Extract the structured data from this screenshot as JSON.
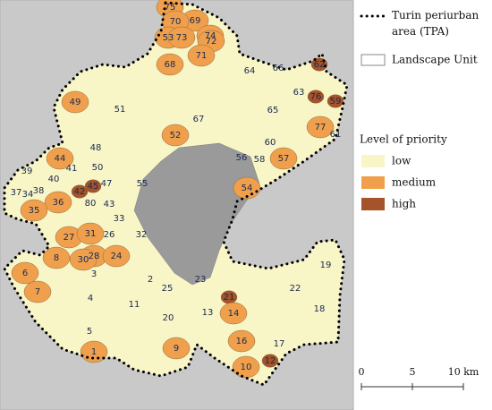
{
  "legend": {
    "boundary": "Turin periurban area (TPA)",
    "landscape_unit": "Landscape Unit",
    "priority_title": "Level of priority",
    "levels": [
      {
        "name": "low",
        "color": "#f8f5c6"
      },
      {
        "name": "medium",
        "color": "#f0a04c"
      },
      {
        "name": "high",
        "color": "#a4532a"
      }
    ]
  },
  "scale_bar": {
    "labels": [
      "0",
      "5",
      "10 km"
    ]
  },
  "units": [
    {
      "label": "75",
      "level": 1
    },
    {
      "label": "69",
      "level": 1
    },
    {
      "label": "74",
      "level": 1
    },
    {
      "label": "70",
      "level": 1
    },
    {
      "label": "53",
      "level": 1
    },
    {
      "label": "73",
      "level": 1
    },
    {
      "label": "72",
      "level": 1
    },
    {
      "label": "71",
      "level": 1
    },
    {
      "label": "68",
      "level": 1
    },
    {
      "label": "62",
      "level": 2
    },
    {
      "label": "64",
      "level": 0
    },
    {
      "label": "66",
      "level": 0
    },
    {
      "label": "63",
      "level": 0
    },
    {
      "label": "76",
      "level": 2
    },
    {
      "label": "59",
      "level": 2
    },
    {
      "label": "49",
      "level": 1
    },
    {
      "label": "51",
      "level": 0
    },
    {
      "label": "65",
      "level": 0
    },
    {
      "label": "67",
      "level": 0
    },
    {
      "label": "77",
      "level": 1
    },
    {
      "label": "61",
      "level": 0
    },
    {
      "label": "52",
      "level": 1
    },
    {
      "label": "60",
      "level": 0
    },
    {
      "label": "48",
      "level": 0
    },
    {
      "label": "56",
      "level": 0
    },
    {
      "label": "58",
      "level": 0
    },
    {
      "label": "57",
      "level": 1
    },
    {
      "label": "44",
      "level": 1
    },
    {
      "label": "39",
      "level": 0
    },
    {
      "label": "41",
      "level": 0
    },
    {
      "label": "50",
      "level": 0
    },
    {
      "label": "40",
      "level": 0
    },
    {
      "label": "55",
      "level": 0
    },
    {
      "label": "47",
      "level": 0
    },
    {
      "label": "45",
      "level": 2
    },
    {
      "label": "54",
      "level": 1
    },
    {
      "label": "37",
      "level": 0
    },
    {
      "label": "34",
      "level": 0
    },
    {
      "label": "38",
      "level": 0
    },
    {
      "label": "42",
      "level": 2
    },
    {
      "label": "36",
      "level": 1
    },
    {
      "label": "35",
      "level": 1
    },
    {
      "label": "80",
      "level": 0
    },
    {
      "label": "43",
      "level": 0
    },
    {
      "label": "33",
      "level": 0
    },
    {
      "label": "26",
      "level": 0
    },
    {
      "label": "32",
      "level": 0
    },
    {
      "label": "27",
      "level": 1
    },
    {
      "label": "31",
      "level": 1
    },
    {
      "label": "28",
      "level": 1
    },
    {
      "label": "30",
      "level": 1
    },
    {
      "label": "24",
      "level": 1
    },
    {
      "label": "8",
      "level": 1
    },
    {
      "label": "6",
      "level": 1
    },
    {
      "label": "3",
      "level": 0
    },
    {
      "label": "23",
      "level": 0
    },
    {
      "label": "2",
      "level": 0
    },
    {
      "label": "19",
      "level": 0
    },
    {
      "label": "22",
      "level": 0
    },
    {
      "label": "25",
      "level": 0
    },
    {
      "label": "21",
      "level": 2
    },
    {
      "label": "7",
      "level": 1
    },
    {
      "label": "4",
      "level": 0
    },
    {
      "label": "11",
      "level": 0
    },
    {
      "label": "18",
      "level": 0
    },
    {
      "label": "13",
      "level": 0
    },
    {
      "label": "14",
      "level": 1
    },
    {
      "label": "20",
      "level": 0
    },
    {
      "label": "5",
      "level": 0
    },
    {
      "label": "16",
      "level": 1
    },
    {
      "label": "17",
      "level": 0
    },
    {
      "label": "9",
      "level": 1
    },
    {
      "label": "1",
      "level": 1
    },
    {
      "label": "10",
      "level": 1
    },
    {
      "label": "12",
      "level": 2
    }
  ]
}
